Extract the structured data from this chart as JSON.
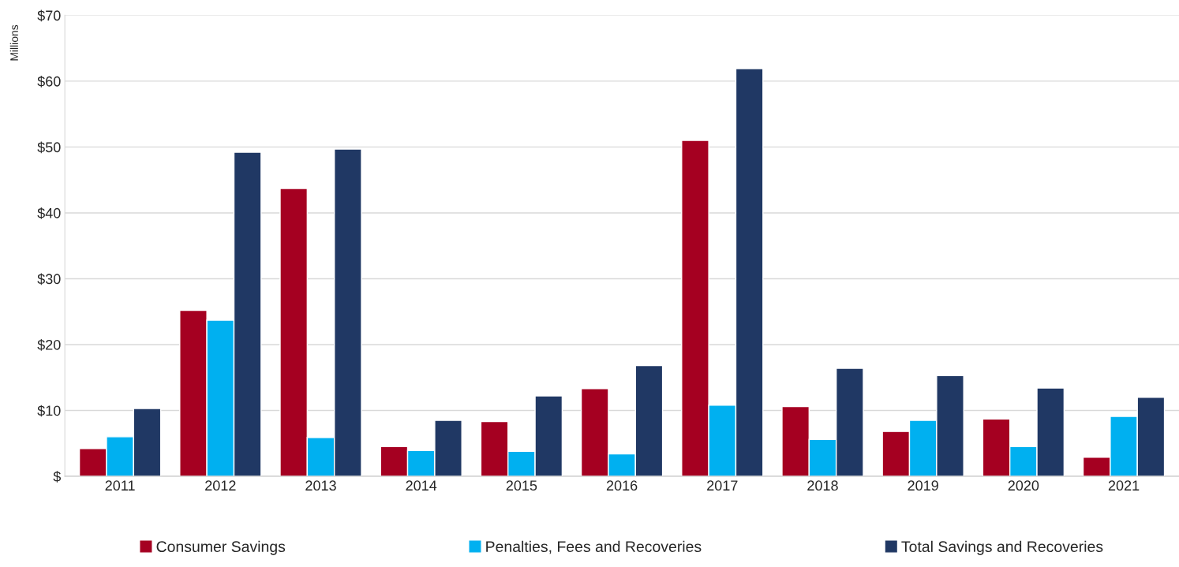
{
  "chart_data": {
    "type": "bar",
    "ylabel": "Millions",
    "categories": [
      "2011",
      "2012",
      "2013",
      "2014",
      "2015",
      "2016",
      "2017",
      "2018",
      "2019",
      "2020",
      "2021"
    ],
    "series": [
      {
        "name": "Consumer Savings",
        "color": "#a50021",
        "values": [
          4.2,
          25.2,
          43.7,
          4.5,
          8.3,
          13.3,
          51.0,
          10.6,
          6.8,
          8.7,
          2.9
        ]
      },
      {
        "name": "Penalties, Fees and Recoveries",
        "color": "#00b0f0",
        "values": [
          6.0,
          23.7,
          5.9,
          3.9,
          3.8,
          3.4,
          10.8,
          5.6,
          8.5,
          4.5,
          9.1
        ]
      },
      {
        "name": "Total Savings and Recoveries",
        "color": "#203864",
        "values": [
          10.3,
          49.2,
          49.7,
          8.5,
          12.2,
          16.8,
          61.9,
          16.4,
          15.3,
          13.4,
          12.0
        ]
      }
    ],
    "ylim": [
      0,
      70
    ],
    "yticks": [
      {
        "value": 0,
        "label": "$"
      },
      {
        "value": 10,
        "label": "$10"
      },
      {
        "value": 20,
        "label": "$20"
      },
      {
        "value": 30,
        "label": "$30"
      },
      {
        "value": 40,
        "label": "$40"
      },
      {
        "value": 50,
        "label": "$50"
      },
      {
        "value": 60,
        "label": "$60"
      },
      {
        "value": 70,
        "label": "$70"
      }
    ],
    "grid": "y",
    "legend": "bottom"
  }
}
